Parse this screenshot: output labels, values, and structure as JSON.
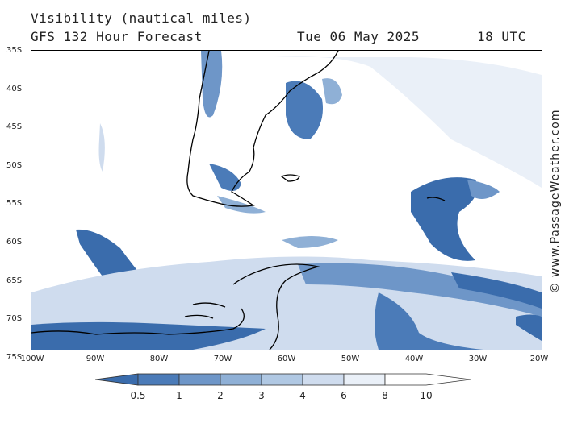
{
  "title": {
    "line1": "Visibility (nautical miles)",
    "model": "GFS 132 Hour Forecast",
    "date": "Tue 06 May 2025",
    "time": "18 UTC"
  },
  "credit": "© www.PassageWeather.com",
  "map": {
    "lat_labels": [
      "35S",
      "40S",
      "45S",
      "50S",
      "55S",
      "60S",
      "65S",
      "70S",
      "75S"
    ],
    "lon_labels": [
      "100W",
      "90W",
      "80W",
      "70W",
      "60W",
      "50W",
      "40W",
      "30W",
      "20W"
    ],
    "lat_range": [
      -35,
      -77.5
    ],
    "lon_range": [
      -100,
      -20
    ]
  },
  "legend": {
    "values": [
      "0.5",
      "1",
      "2",
      "3",
      "4",
      "6",
      "8",
      "10"
    ],
    "colors": [
      "#3a6cac",
      "#4b7bb8",
      "#6e96c8",
      "#8fb0d6",
      "#b0c8e3",
      "#cfdcee",
      "#eaf0f8",
      "#ffffff"
    ]
  }
}
